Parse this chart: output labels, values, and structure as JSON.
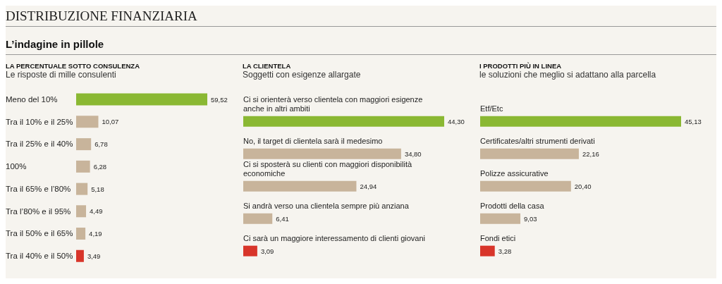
{
  "chart_data": [
    {
      "type": "other",
      "title": "DISTRIBUZIONE FINANZIARIA",
      "subtitle": "L’indagine in pillole"
    },
    {
      "type": "bar",
      "orientation": "horizontal",
      "title": "LA PERCENTUALE SOTTO CONSULENZA",
      "subtitle": "Le risposte di mille consulenti",
      "tick_labels": "y",
      "categories": [
        "Meno del 10%",
        "Tra il 10% e il 25%",
        "Tra il 25% e il 40%",
        "100%",
        "Tra il 65% e l’80%",
        "Tra l’80% e il 95%",
        "Tra il 50% e il 65%",
        "Tra il 40% e il 50%"
      ],
      "values": [
        59.52,
        10.07,
        6.78,
        6.28,
        5.18,
        4.49,
        4.19,
        3.49
      ],
      "value_labels": [
        "59,52",
        "10,07",
        "6,78",
        "6,28",
        "5,18",
        "4,49",
        "4,19",
        "3,49"
      ],
      "colors": [
        "#8ab833",
        "#c8b49b",
        "#c8b49b",
        "#c8b49b",
        "#c8b49b",
        "#c8b49b",
        "#c8b49b",
        "#d8352a"
      ]
    },
    {
      "type": "bar",
      "orientation": "horizontal",
      "title": "LA CLIENTELA",
      "subtitle": "Soggetti con esigenze allargate",
      "tick_labels": "y",
      "categories": [
        "Ci si orienterà verso clientela con maggiori esigenze anche in altri ambiti",
        "No, il target di clientela sarà il medesimo",
        "Ci si sposterà su clienti con maggiori disponibilità economiche",
        "Si andrà verso una clientela sempre più anziana",
        "Ci sarà un maggiore interessamento di clienti giovani"
      ],
      "values": [
        44.3,
        34.8,
        24.94,
        6.41,
        3.09
      ],
      "value_labels": [
        "44,30",
        "34,80",
        "24,94",
        "6,41",
        "3,09"
      ],
      "colors": [
        "#8ab833",
        "#c8b49b",
        "#c8b49b",
        "#c8b49b",
        "#d8352a"
      ]
    },
    {
      "type": "bar",
      "orientation": "horizontal",
      "title": "I PRODOTTI PIÙ IN LINEA",
      "subtitle": "le soluzioni che meglio si adattano alla parcella",
      "tick_labels": "y",
      "categories": [
        "Etf/Etc",
        "Certificates/altri  strumenti derivati",
        "Polizze assicurative",
        "Prodotti della casa",
        "Fondi etici"
      ],
      "values": [
        45.13,
        22.16,
        20.4,
        9.03,
        3.28
      ],
      "value_labels": [
        "45,13",
        "22,16",
        "20,40",
        "9,03",
        "3,28"
      ],
      "colors": [
        "#8ab833",
        "#c8b49b",
        "#c8b49b",
        "#c8b49b",
        "#d8352a"
      ]
    }
  ]
}
